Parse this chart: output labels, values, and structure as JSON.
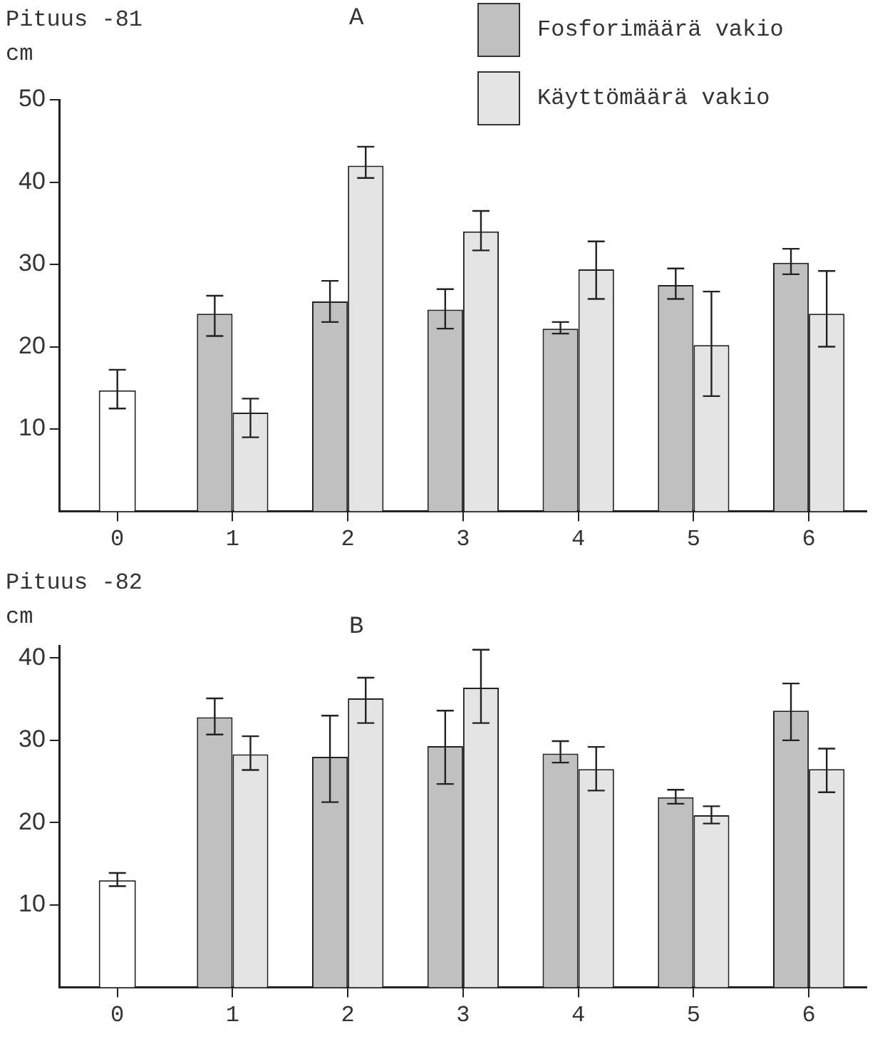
{
  "chart_data": [
    {
      "type": "bar",
      "title": "A",
      "ylabel": "Pituus -81 cm",
      "categories": [
        "0",
        "1",
        "2",
        "3",
        "4",
        "5",
        "6"
      ],
      "ylim": [
        0,
        50
      ],
      "yticks": [
        10,
        20,
        30,
        40,
        50
      ],
      "legend": "top right",
      "series": [
        {
          "color": "#ffffff",
          "values": [
            14.7,
            null,
            null,
            null,
            null,
            null,
            null
          ],
          "errors": [
            [
              12.5,
              17.2
            ],
            null,
            null,
            null,
            null,
            null,
            null
          ]
        },
        {
          "name": "Fosforimäärä vakio",
          "color": "#c0c0c0",
          "values": [
            null,
            24,
            25.5,
            24.5,
            22.2,
            27.5,
            30.2
          ],
          "errors": [
            null,
            [
              21.3,
              26.2
            ],
            [
              23,
              28
            ],
            [
              22.2,
              27
            ],
            [
              21.6,
              23
            ],
            [
              25.8,
              29.5
            ],
            [
              28.8,
              31.9
            ]
          ]
        },
        {
          "name": "Käyttömäärä vakio",
          "color": "#e4e4e4",
          "values": [
            null,
            12,
            42,
            34,
            29.4,
            20.2,
            24
          ],
          "errors": [
            null,
            [
              9,
              13.7
            ],
            [
              40.5,
              44.3
            ],
            [
              31.7,
              36.5
            ],
            [
              25.8,
              32.8
            ],
            [
              14,
              26.7
            ],
            [
              20,
              29.2
            ]
          ]
        }
      ]
    },
    {
      "type": "bar",
      "title": "B",
      "ylabel": "Pituus -82 cm",
      "categories": [
        "0",
        "1",
        "2",
        "3",
        "4",
        "5",
        "6"
      ],
      "ylim": [
        0,
        41.5
      ],
      "yticks": [
        10,
        20,
        30,
        40
      ],
      "series": [
        {
          "color": "#ffffff",
          "values": [
            13,
            null,
            null,
            null,
            null,
            null,
            null
          ],
          "errors": [
            [
              12.3,
              13.9
            ],
            null,
            null,
            null,
            null,
            null,
            null
          ]
        },
        {
          "color": "#c0c0c0",
          "values": [
            null,
            32.8,
            28,
            29.3,
            28.4,
            23.1,
            33.6
          ],
          "errors": [
            null,
            [
              30.7,
              35.1
            ],
            [
              22.5,
              33
            ],
            [
              24.7,
              33.6
            ],
            [
              27.3,
              29.9
            ],
            [
              22.3,
              24
            ],
            [
              30,
              36.9
            ]
          ]
        },
        {
          "color": "#e4e4e4",
          "values": [
            null,
            28.3,
            35.1,
            36.4,
            26.5,
            20.9,
            26.5
          ],
          "errors": [
            null,
            [
              26.4,
              30.5
            ],
            [
              32.1,
              37.6
            ],
            [
              32.1,
              41
            ],
            [
              23.9,
              29.2
            ],
            [
              19.9,
              22
            ],
            [
              23.7,
              29
            ]
          ]
        }
      ]
    }
  ]
}
